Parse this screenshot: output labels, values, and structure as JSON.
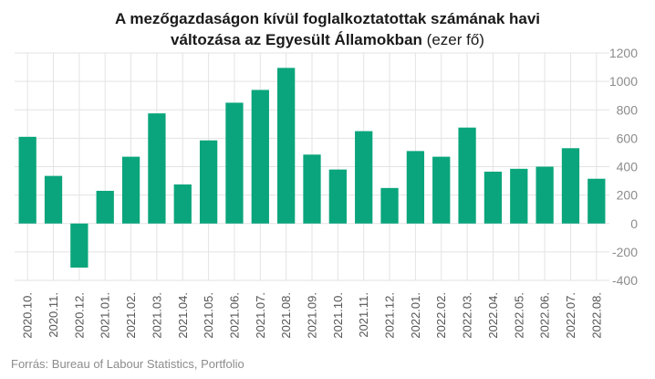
{
  "title": {
    "line1": "A mezőgazdaságon kívül foglalkoztatottak számának havi",
    "line2": "változása az Egyesült Államokban",
    "unit": "(ezer fő)"
  },
  "source": "Forrás: Bureau of Labour Statistics, Portfolio",
  "colors": {
    "bar": "#0aa57c",
    "grid": "#e3e3e3",
    "tick_label": "#8c8c8c",
    "x_label": "#555555",
    "title": "#1a1a1a"
  },
  "chart_data": {
    "type": "bar",
    "title": "A mezőgazdaságon kívül foglalkoztatottak számának havi változása az Egyesült Államokban (ezer fő)",
    "categories": [
      "2020.10.",
      "2020.11.",
      "2020.12.",
      "2021.01.",
      "2021.02.",
      "2021.03.",
      "2021.04.",
      "2021.05.",
      "2021.06.",
      "2021.07.",
      "2021.08.",
      "2021.09.",
      "2021.10.",
      "2021.11.",
      "2021.12.",
      "2022.01.",
      "2022.02.",
      "2022.03.",
      "2022.04.",
      "2022.05.",
      "2022.06.",
      "2022.07.",
      "2022.08."
    ],
    "values": [
      610,
      335,
      -310,
      230,
      470,
      775,
      275,
      585,
      850,
      940,
      1095,
      485,
      380,
      650,
      250,
      510,
      470,
      675,
      365,
      385,
      400,
      530,
      315
    ],
    "yticks": [
      -400,
      -200,
      0,
      200,
      400,
      600,
      800,
      1000,
      1200
    ],
    "ylim": [
      -400,
      1200
    ],
    "y_axis_side": "right",
    "grid": true,
    "xlabel": "",
    "ylabel": ""
  }
}
